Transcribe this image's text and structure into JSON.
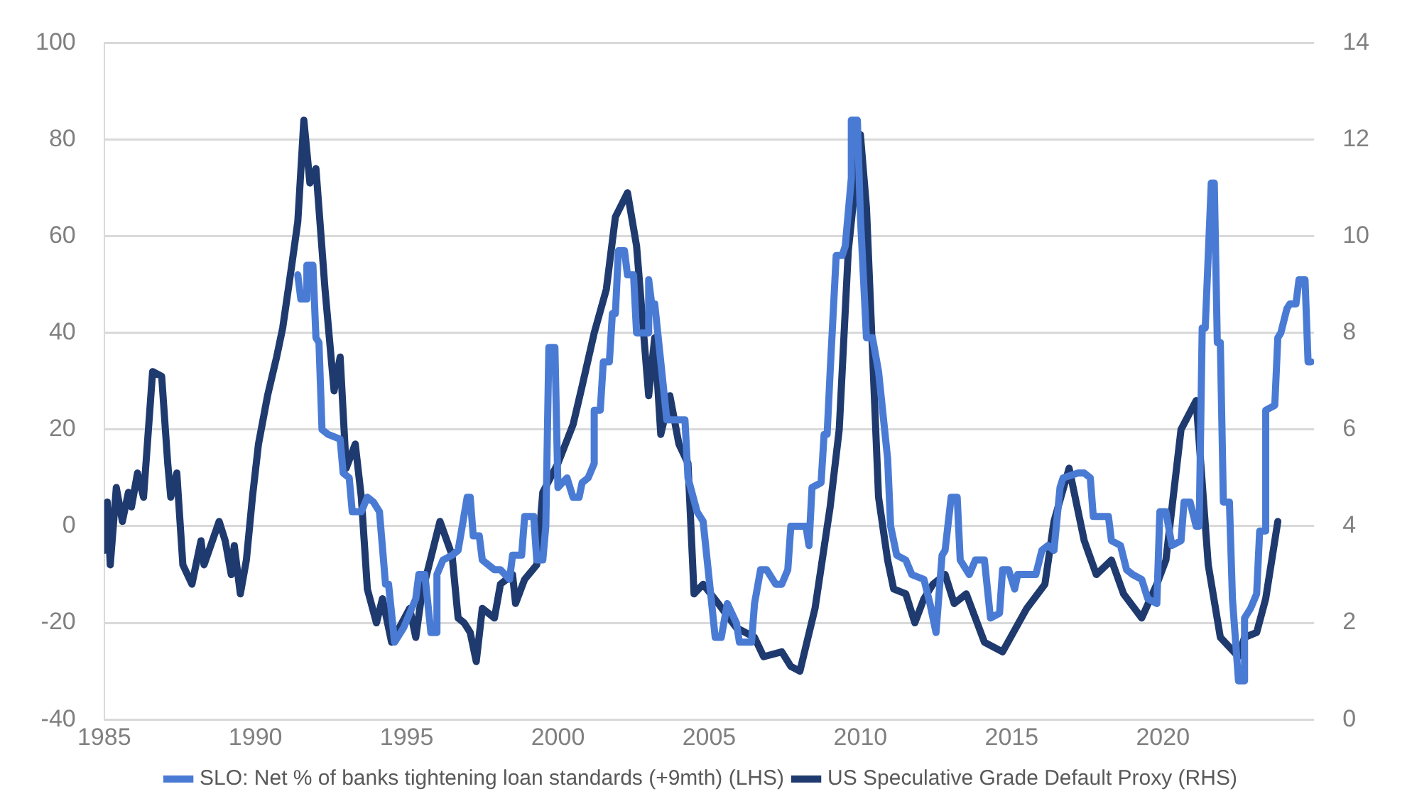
{
  "chart_data": {
    "type": "line",
    "xlim": [
      1985,
      2025
    ],
    "xticks": [
      1985,
      1990,
      1995,
      2000,
      2005,
      2010,
      2015,
      2020
    ],
    "ylim": [
      -40,
      100
    ],
    "yticks": [
      -40,
      -20,
      0,
      20,
      40,
      60,
      80,
      100
    ],
    "y2lim": [
      0,
      14
    ],
    "y2ticks": [
      0,
      2,
      4,
      6,
      8,
      10,
      12,
      14
    ],
    "grid": "y",
    "legend": "bottom",
    "marker": "none",
    "line_style": "solid",
    "series": [
      {
        "name": "SLO: Net % of banks tightening loan standards (+9mth) (LHS)",
        "color": "#4a7bd4",
        "axis": "y",
        "x": [
          1991.4,
          1991.5,
          1991.7,
          1991.7,
          1991.9,
          1992.0,
          1992.1,
          1992.2,
          1992.4,
          1992.8,
          1992.9,
          1993.1,
          1993.2,
          1993.5,
          1993.7,
          1993.9,
          1994.1,
          1994.3,
          1994.4,
          1994.6,
          1994.9,
          1995.3,
          1995.4,
          1995.6,
          1995.8,
          1996.0,
          1996.0,
          1996.2,
          1996.5,
          1996.7,
          1997.0,
          1997.1,
          1997.2,
          1997.4,
          1997.5,
          1997.9,
          1998.1,
          1998.4,
          1998.5,
          1998.8,
          1998.9,
          1999.2,
          1999.3,
          1999.5,
          1999.6,
          1999.7,
          1999.9,
          2000.0,
          2000.3,
          2000.5,
          2000.7,
          2000.8,
          2001.0,
          2001.2,
          2001.2,
          2001.4,
          2001.5,
          2001.7,
          2001.8,
          2001.9,
          2002.0,
          2002.2,
          2002.3,
          2002.5,
          2002.6,
          2003.0,
          2003.0,
          2003.1,
          2003.2,
          2003.4,
          2003.6,
          2004.2,
          2004.3,
          2004.6,
          2004.8,
          2005.0,
          2005.1,
          2005.2,
          2005.4,
          2005.6,
          2005.9,
          2006.0,
          2006.4,
          2006.5,
          2006.7,
          2006.9,
          2007.2,
          2007.4,
          2007.6,
          2007.7,
          2008.2,
          2008.3,
          2008.4,
          2008.7,
          2008.8,
          2008.9,
          2009.0,
          2009.2,
          2009.4,
          2009.5,
          2009.7,
          2009.7,
          2009.9,
          2010.0,
          2010.2,
          2010.4,
          2010.6,
          2010.9,
          2011.0,
          2011.2,
          2011.5,
          2011.7,
          2012.1,
          2012.3,
          2012.5,
          2012.7,
          2012.8,
          2013.0,
          2013.2,
          2013.3,
          2013.6,
          2013.8,
          2014.1,
          2014.3,
          2014.6,
          2014.7,
          2014.9,
          2015.1,
          2015.2,
          2015.8,
          2016.0,
          2016.2,
          2016.4,
          2016.6,
          2016.7,
          2017.2,
          2017.4,
          2017.6,
          2017.7,
          2018.2,
          2018.3,
          2018.6,
          2018.8,
          2019.0,
          2019.3,
          2019.5,
          2019.8,
          2019.9,
          2020.1,
          2020.3,
          2020.6,
          2020.7,
          2020.9,
          2021.1,
          2021.2,
          2021.3,
          2021.4,
          2021.6,
          2021.7,
          2021.8,
          2021.9,
          2022.0,
          2022.2,
          2022.3,
          2022.5,
          2022.7,
          2022.7,
          2022.9,
          2023.1,
          2023.2,
          2023.4,
          2023.4,
          2023.7,
          2023.8,
          2023.9,
          2024.1,
          2024.2,
          2024.4,
          2024.5,
          2024.7,
          2024.8,
          2024.9
        ],
        "values": [
          52,
          47,
          47,
          54,
          54,
          39,
          38,
          20,
          19,
          18,
          11,
          10,
          3,
          3,
          6,
          5,
          3,
          -12,
          -12,
          -24,
          -21,
          -15,
          -10,
          -10,
          -22,
          -22,
          -10,
          -7,
          -6,
          -5,
          6,
          6,
          -2,
          -2,
          -7,
          -9,
          -9,
          -11,
          -6,
          -6,
          2,
          2,
          -7,
          -7,
          0,
          37,
          37,
          8,
          10,
          6,
          6,
          9,
          10,
          13,
          24,
          24,
          34,
          34,
          44,
          44,
          57,
          57,
          52,
          52,
          40,
          40,
          51,
          46,
          46,
          34,
          22,
          22,
          10,
          3,
          1,
          -11,
          -17,
          -23,
          -23,
          -16,
          -20,
          -24,
          -24,
          -16,
          -9,
          -9,
          -12,
          -12,
          -9,
          0,
          0,
          -4,
          8,
          9,
          19,
          19,
          32,
          56,
          56,
          58,
          72,
          84,
          84,
          64,
          39,
          39,
          32,
          14,
          0,
          -6,
          -7,
          -10,
          -11,
          -16,
          -22,
          -6,
          -5,
          6,
          6,
          -7,
          -10,
          -7,
          -7,
          -19,
          -18,
          -9,
          -9,
          -13,
          -10,
          -10,
          -5,
          -4,
          -5,
          8,
          10,
          11,
          11,
          10,
          2,
          2,
          -3,
          -4,
          -9,
          -10,
          -11,
          -15,
          -16,
          3,
          3,
          -4,
          -3,
          5,
          5,
          0,
          0,
          41,
          41,
          71,
          71,
          38,
          38,
          5,
          5,
          -15,
          -32,
          -32,
          -19,
          -17,
          -14,
          -1,
          -1,
          24,
          25,
          39,
          40,
          45,
          46,
          46,
          51,
          51,
          34,
          34
        ]
      },
      {
        "name": "US Speculative Grade Default Proxy (RHS)",
        "color": "#1f3a6e",
        "axis": "y2",
        "x": [
          1985.0,
          1985.1,
          1985.2,
          1985.4,
          1985.6,
          1985.8,
          1985.9,
          1986.1,
          1986.3,
          1986.6,
          1986.9,
          1987.1,
          1987.2,
          1987.4,
          1987.6,
          1987.9,
          1988.2,
          1988.3,
          1988.8,
          1989.0,
          1989.2,
          1989.3,
          1989.5,
          1989.7,
          1989.9,
          1990.1,
          1990.4,
          1990.7,
          1990.9,
          1991.2,
          1991.4,
          1991.6,
          1991.8,
          1992.0,
          1992.3,
          1992.6,
          1992.8,
          1993.0,
          1993.3,
          1993.5,
          1993.7,
          1994.0,
          1994.2,
          1994.5,
          1995.1,
          1995.3,
          1995.5,
          1996.1,
          1996.5,
          1996.7,
          1996.9,
          1997.1,
          1997.3,
          1997.5,
          1997.9,
          1998.1,
          1998.5,
          1998.6,
          1998.9,
          1999.3,
          1999.5,
          2000.0,
          2000.5,
          2000.8,
          2001.2,
          2001.6,
          2001.9,
          2002.3,
          2002.6,
          2003.0,
          2003.2,
          2003.4,
          2003.7,
          2004.0,
          2004.3,
          2004.5,
          2004.8,
          2005.3,
          2005.9,
          2006.5,
          2006.8,
          2007.4,
          2007.7,
          2008.0,
          2008.5,
          2009.0,
          2009.3,
          2009.6,
          2010.0,
          2010.2,
          2010.6,
          2010.9,
          2011.1,
          2011.5,
          2011.8,
          2012.1,
          2012.4,
          2012.8,
          2013.1,
          2013.5,
          2014.1,
          2014.7,
          2015.5,
          2016.1,
          2016.4,
          2016.9,
          2017.4,
          2017.8,
          2018.3,
          2018.7,
          2019.3,
          2019.8,
          2020.1,
          2020.6,
          2021.1,
          2021.5,
          2021.9,
          2022.5,
          2022.7,
          2023.1,
          2023.4,
          2023.8
        ],
        "values": [
          3.5,
          4.5,
          3.2,
          4.8,
          4.1,
          4.7,
          4.4,
          5.1,
          4.6,
          7.2,
          7.1,
          5.3,
          4.6,
          5.1,
          3.2,
          2.8,
          3.7,
          3.2,
          4.1,
          3.7,
          3.0,
          3.6,
          2.6,
          3.3,
          4.6,
          5.7,
          6.7,
          7.5,
          8.1,
          9.4,
          10.3,
          12.4,
          11.1,
          11.4,
          8.9,
          6.8,
          7.5,
          5.2,
          5.7,
          4.6,
          2.7,
          2.0,
          2.5,
          1.6,
          2.3,
          1.7,
          2.6,
          4.1,
          3.4,
          2.1,
          2.0,
          1.8,
          1.2,
          2.3,
          2.1,
          2.8,
          3.0,
          2.4,
          2.9,
          3.2,
          4.7,
          5.3,
          6.1,
          6.9,
          8.0,
          8.9,
          10.4,
          10.9,
          9.8,
          6.7,
          7.9,
          5.9,
          6.7,
          5.7,
          5.3,
          2.6,
          2.8,
          2.4,
          1.9,
          1.7,
          1.3,
          1.4,
          1.1,
          1.0,
          2.3,
          4.4,
          6.0,
          9.7,
          12.1,
          10.6,
          4.6,
          3.3,
          2.7,
          2.6,
          2.0,
          2.5,
          2.8,
          3.0,
          2.4,
          2.6,
          1.6,
          1.4,
          2.3,
          2.8,
          4.1,
          5.2,
          3.7,
          3.0,
          3.3,
          2.6,
          2.1,
          2.8,
          3.3,
          6.0,
          6.6,
          3.2,
          1.7,
          1.3,
          1.7,
          1.8,
          2.5,
          4.1
        ]
      }
    ]
  }
}
